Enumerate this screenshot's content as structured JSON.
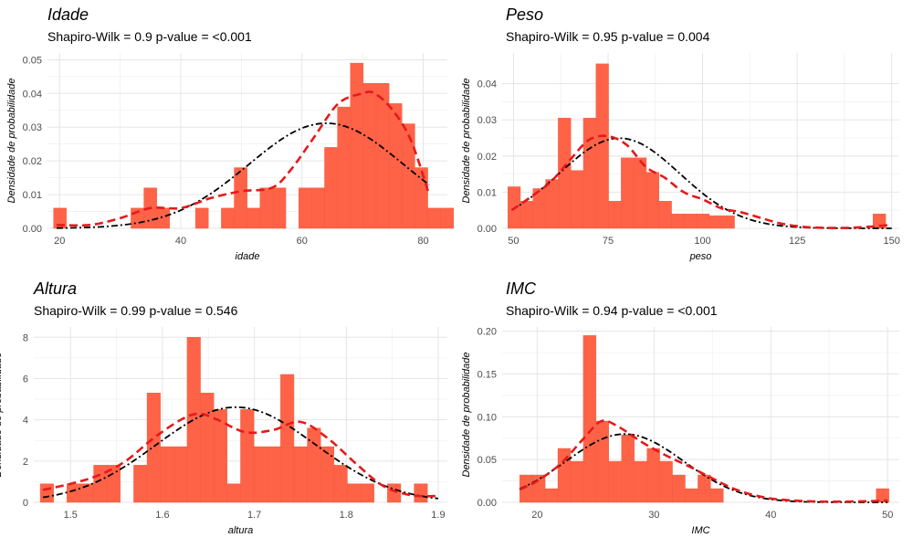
{
  "chart_data": [
    {
      "type": "bar",
      "title": "Idade",
      "subtitle": "Shapiro-Wilk = 0.9 p-value = <0.001",
      "xlabel": "idade",
      "ylabel": "Densidade de probabilidade",
      "xlim": [
        18,
        84
      ],
      "ylim": [
        0,
        0.052
      ],
      "x_ticks": [
        20,
        40,
        60,
        80
      ],
      "y_ticks": [
        0,
        0.01,
        0.02,
        0.03,
        0.04,
        0.05
      ],
      "y_tick_labels": [
        "0.00",
        "0.01",
        "0.02",
        "0.03",
        "0.04",
        "0.05"
      ],
      "bin_start": 19,
      "bin_width": 2.13,
      "values": [
        0.006,
        0,
        0,
        0,
        0,
        0,
        0.006,
        0.012,
        0.006,
        0,
        0,
        0.006,
        0,
        0.006,
        0.018,
        0.006,
        0.012,
        0.012,
        0,
        0.012,
        0.012,
        0.024,
        0.036,
        0.049,
        0.043,
        0.043,
        0.037,
        0.031,
        0.018,
        0.006,
        0.006
      ],
      "normal_curve": {
        "mean": 64,
        "sd": 12.8
      },
      "density_curve": [
        [
          19.5,
          0.001
        ],
        [
          25,
          0.001
        ],
        [
          30,
          0.003
        ],
        [
          35,
          0.006
        ],
        [
          40,
          0.006
        ],
        [
          45,
          0.009
        ],
        [
          50,
          0.011
        ],
        [
          55,
          0.012
        ],
        [
          58,
          0.017
        ],
        [
          62,
          0.027
        ],
        [
          66,
          0.037
        ],
        [
          70,
          0.04
        ],
        [
          72,
          0.04
        ],
        [
          75,
          0.035
        ],
        [
          78,
          0.026
        ],
        [
          81,
          0.01
        ]
      ],
      "grid": true,
      "bar_color": "#ff6347",
      "normal_color": "#000000",
      "density_color": "#e41a1c"
    },
    {
      "type": "bar",
      "title": "Peso",
      "subtitle": "Shapiro-Wilk = 0.95 p-value = 0.004",
      "xlabel": "peso",
      "ylabel": "Densidade de probabilidade",
      "xlim": [
        47,
        152
      ],
      "ylim": [
        0,
        0.0485
      ],
      "x_ticks": [
        50,
        75,
        100,
        125,
        150
      ],
      "y_ticks": [
        0,
        0.01,
        0.02,
        0.03,
        0.04
      ],
      "y_tick_labels": [
        "0.00",
        "0.01",
        "0.02",
        "0.03",
        "0.04"
      ],
      "bin_start": 48.5,
      "bin_width": 3.33,
      "values": [
        0.0115,
        0.0075,
        0.011,
        0.0135,
        0.0305,
        0.016,
        0.0305,
        0.0455,
        0.0075,
        0.0195,
        0.0195,
        0.0155,
        0.0075,
        0.004,
        0.004,
        0.004,
        0.0035,
        0.0035,
        0,
        0,
        0,
        0,
        0,
        0,
        0,
        0,
        0,
        0,
        0,
        0.004
      ],
      "normal_curve": {
        "mean": 78,
        "sd": 16
      },
      "density_curve": [
        [
          49.5,
          0.005
        ],
        [
          55,
          0.009
        ],
        [
          60,
          0.013
        ],
        [
          65,
          0.019
        ],
        [
          70,
          0.0245
        ],
        [
          75,
          0.0255
        ],
        [
          80,
          0.023
        ],
        [
          85,
          0.017
        ],
        [
          90,
          0.014
        ],
        [
          95,
          0.01
        ],
        [
          100,
          0.008
        ],
        [
          105,
          0.0055
        ],
        [
          110,
          0.0045
        ],
        [
          115,
          0.003
        ],
        [
          120,
          0.0015
        ],
        [
          125,
          0.0006
        ],
        [
          130,
          0.0002
        ],
        [
          135,
          0.0001
        ],
        [
          140,
          0.0002
        ],
        [
          145,
          0.0005
        ],
        [
          150,
          0.001
        ]
      ],
      "grid": true,
      "bar_color": "#ff6347",
      "normal_color": "#000000",
      "density_color": "#e41a1c"
    },
    {
      "type": "bar",
      "title": "Altura",
      "subtitle": "Shapiro-Wilk = 0.99 p-value = 0.546",
      "xlabel": "altura",
      "ylabel": "Densidade de probabilidade",
      "xlim": [
        1.46,
        1.91
      ],
      "ylim": [
        0,
        8.5
      ],
      "x_ticks": [
        1.5,
        1.6,
        1.7,
        1.8,
        1.9
      ],
      "y_ticks": [
        0,
        2,
        4,
        6,
        8
      ],
      "y_tick_labels": [
        "0",
        "2",
        "4",
        "6",
        "8"
      ],
      "bin_start": 1.467,
      "bin_width": 0.01453,
      "values": [
        0.9,
        0,
        0.9,
        0.9,
        1.8,
        1.8,
        0,
        1.8,
        5.3,
        2.7,
        2.7,
        8,
        5.3,
        4.5,
        0.9,
        4.5,
        2.7,
        2.7,
        6.2,
        2.7,
        3.6,
        2.7,
        1.8,
        0.9,
        0.9,
        0,
        0.9,
        0,
        0.9
      ],
      "normal_curve": {
        "mean": 1.68,
        "sd": 0.0865
      },
      "density_curve": [
        [
          1.47,
          0.6
        ],
        [
          1.5,
          0.9
        ],
        [
          1.53,
          1.3
        ],
        [
          1.56,
          2
        ],
        [
          1.59,
          3.1
        ],
        [
          1.62,
          4
        ],
        [
          1.64,
          4.3
        ],
        [
          1.66,
          4
        ],
        [
          1.69,
          3.4
        ],
        [
          1.72,
          3.5
        ],
        [
          1.75,
          3.9
        ],
        [
          1.78,
          3.1
        ],
        [
          1.81,
          1.9
        ],
        [
          1.84,
          0.8
        ],
        [
          1.87,
          0.35
        ],
        [
          1.9,
          0.3
        ]
      ],
      "grid": true,
      "bar_color": "#ff6347",
      "normal_color": "#000000",
      "density_color": "#e41a1c"
    },
    {
      "type": "bar",
      "title": "IMC",
      "subtitle": "Shapiro-Wilk = 0.94 p-value = <0.001",
      "xlabel": "IMC",
      "ylabel": "Densidade de probabilidade",
      "xlim": [
        17,
        51
      ],
      "ylim": [
        0,
        0.205
      ],
      "x_ticks": [
        20,
        30,
        40,
        50
      ],
      "y_ticks": [
        0,
        0.05,
        0.1,
        0.15,
        0.2
      ],
      "y_tick_labels": [
        "0.00",
        "0.05",
        "0.10",
        "0.15",
        "0.20"
      ],
      "bin_start": 18.5,
      "bin_width": 1.09,
      "values": [
        0.032,
        0.032,
        0.016,
        0.063,
        0.048,
        0.195,
        0.095,
        0.048,
        0.079,
        0.048,
        0.063,
        0.048,
        0.032,
        0.016,
        0.032,
        0.016,
        0,
        0,
        0,
        0,
        0,
        0,
        0,
        0,
        0,
        0,
        0,
        0,
        0.016
      ],
      "normal_curve": {
        "mean": 27.5,
        "sd": 5
      },
      "density_curve": [
        [
          18.5,
          0.015
        ],
        [
          20,
          0.025
        ],
        [
          22,
          0.045
        ],
        [
          24,
          0.075
        ],
        [
          25.5,
          0.095
        ],
        [
          27,
          0.088
        ],
        [
          29,
          0.07
        ],
        [
          31,
          0.055
        ],
        [
          33,
          0.042
        ],
        [
          35,
          0.028
        ],
        [
          37,
          0.015
        ],
        [
          39,
          0.007
        ],
        [
          41,
          0.003
        ],
        [
          44,
          0.001
        ],
        [
          47,
          0.001
        ],
        [
          50,
          0.002
        ]
      ],
      "grid": true,
      "bar_color": "#ff6347",
      "normal_color": "#000000",
      "density_color": "#e41a1c"
    }
  ]
}
